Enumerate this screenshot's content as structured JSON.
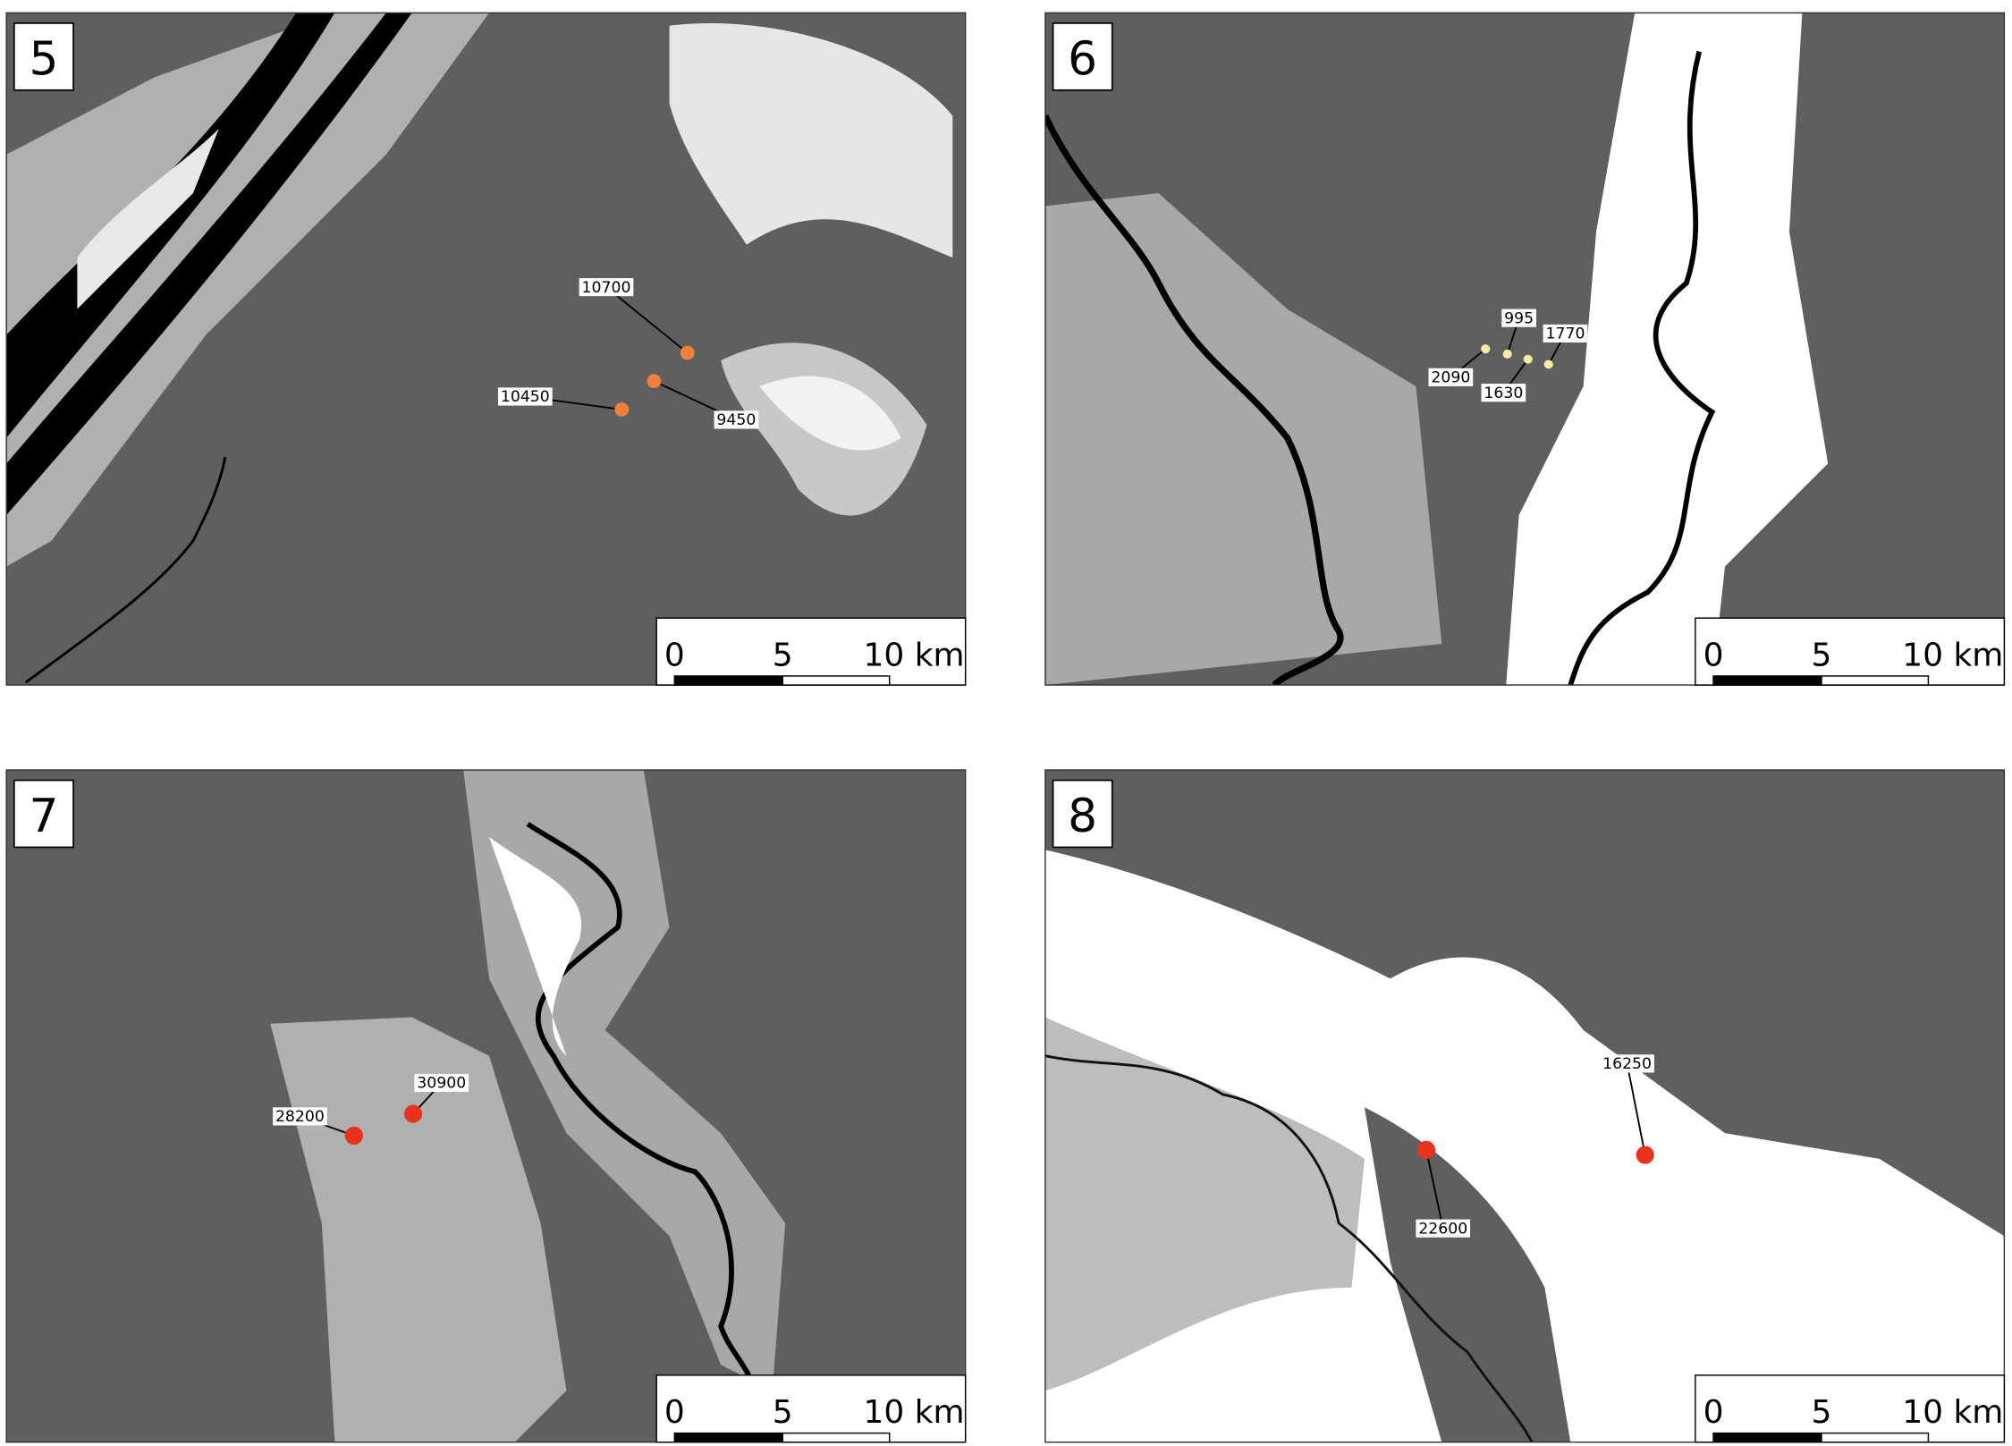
{
  "panels": [
    {
      "number": "5",
      "marker_color": "#f07f3c",
      "scale": [
        "0",
        "5",
        "10 km"
      ],
      "points": [
        {
          "label": "10700"
        },
        {
          "label": "9450"
        },
        {
          "label": "10450"
        }
      ]
    },
    {
      "number": "6",
      "marker_color": "#f3eea0",
      "scale": [
        "0",
        "5",
        "10 km"
      ],
      "points": [
        {
          "label": "995"
        },
        {
          "label": "2090"
        },
        {
          "label": "1630"
        },
        {
          "label": "1770"
        }
      ]
    },
    {
      "number": "7",
      "marker_color": "#e8321e",
      "scale": [
        "0",
        "5",
        "10 km"
      ],
      "points": [
        {
          "label": "30900"
        },
        {
          "label": "28200"
        }
      ]
    },
    {
      "number": "8",
      "marker_color": "#e8321e",
      "scale": [
        "0",
        "5",
        "10 km"
      ],
      "points": [
        {
          "label": "16250"
        },
        {
          "label": "22600"
        }
      ]
    }
  ]
}
